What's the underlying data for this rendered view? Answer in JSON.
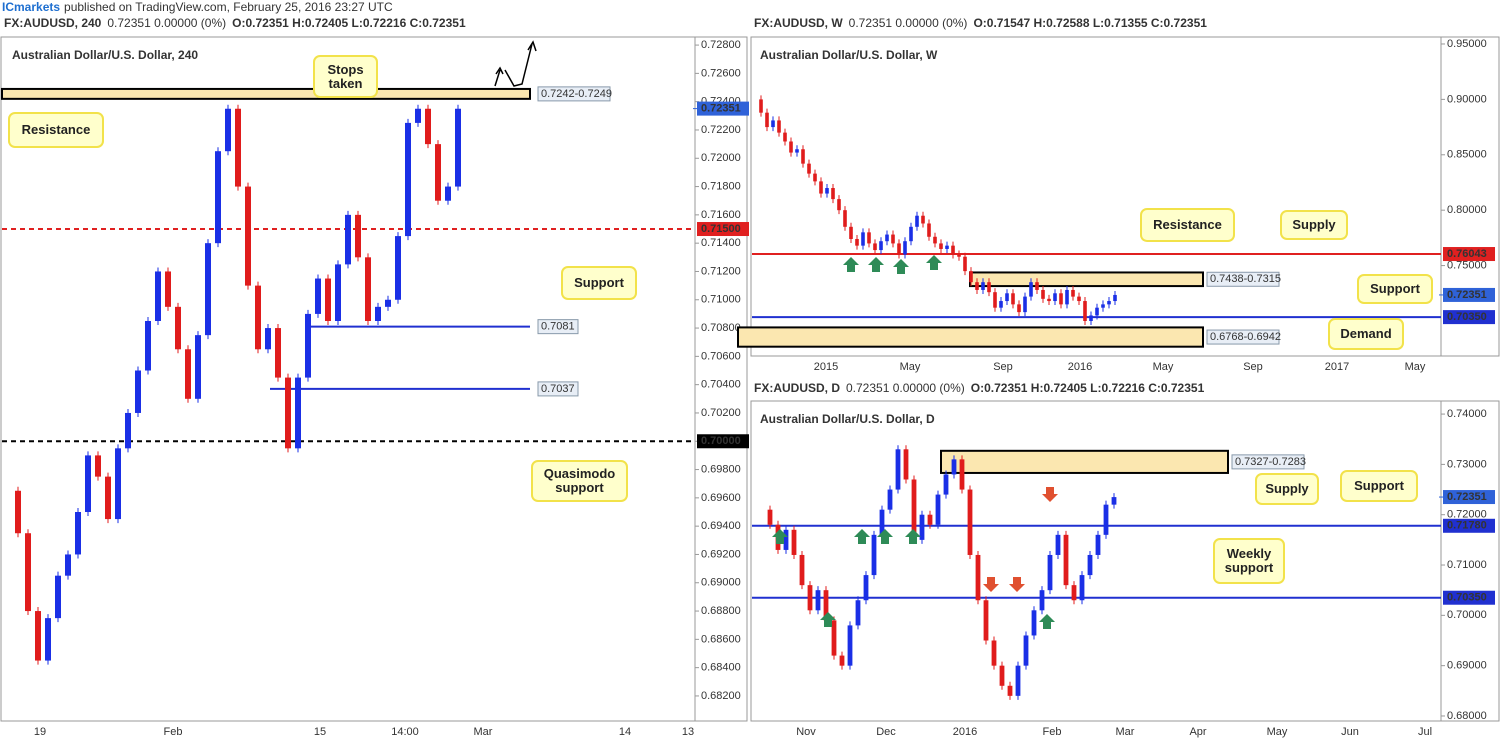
{
  "header": {
    "brand": "ICmarkets",
    "published": "published on TradingView.com, February 25, 2016 23:27 UTC"
  },
  "panels": [
    {
      "symbol": "FX:AUDUSD, 240",
      "quote": "0.72351 0.00000 (0%)",
      "ohlc": "O:0.72351 H:0.72405 L:0.72216 C:0.72351",
      "title": "Australian Dollar/U.S. Dollar, 240",
      "ylim": [
        0.6803,
        0.7285
      ],
      "yticks": [
        {
          "value": 0.728,
          "label": "0.72800"
        },
        {
          "value": 0.726,
          "label": "0.72600"
        },
        {
          "value": 0.724,
          "label": "0.72400"
        },
        {
          "value": 0.722,
          "label": "0.72200"
        },
        {
          "value": 0.72,
          "label": "0.72000"
        },
        {
          "value": 0.718,
          "label": "0.71800"
        },
        {
          "value": 0.716,
          "label": "0.71600"
        },
        {
          "value": 0.714,
          "label": "0.71400"
        },
        {
          "value": 0.712,
          "label": "0.71200"
        },
        {
          "value": 0.71,
          "label": "0.71000"
        },
        {
          "value": 0.708,
          "label": "0.70800"
        },
        {
          "value": 0.706,
          "label": "0.70600"
        },
        {
          "value": 0.704,
          "label": "0.70400"
        },
        {
          "value": 0.702,
          "label": "0.70200"
        },
        {
          "value": 0.7,
          "label": "0.70000"
        },
        {
          "value": 0.698,
          "label": "0.69800"
        },
        {
          "value": 0.696,
          "label": "0.69600"
        },
        {
          "value": 0.694,
          "label": "0.69400"
        },
        {
          "value": 0.692,
          "label": "0.69200"
        },
        {
          "value": 0.69,
          "label": "0.69000"
        },
        {
          "value": 0.688,
          "label": "0.68800"
        },
        {
          "value": 0.686,
          "label": "0.68600"
        },
        {
          "value": 0.684,
          "label": "0.68400"
        },
        {
          "value": 0.682,
          "label": "0.68200"
        }
      ],
      "xlabels": [
        "19",
        "Feb",
        "15",
        "14:00",
        "Mar",
        "14",
        "13"
      ],
      "closes": [
        0.6965,
        0.6935,
        0.688,
        0.6845,
        0.6875,
        0.6905,
        0.692,
        0.695,
        0.699,
        0.6975,
        0.6945,
        0.6995,
        0.702,
        0.705,
        0.7085,
        0.712,
        0.7095,
        0.7065,
        0.703,
        0.7075,
        0.714,
        0.7205,
        0.7235,
        0.718,
        0.711,
        0.7065,
        0.708,
        0.7045,
        0.6995,
        0.7045,
        0.709,
        0.7115,
        0.7085,
        0.7125,
        0.716,
        0.713,
        0.7085,
        0.7095,
        0.71,
        0.7145,
        0.7225,
        0.7235,
        0.721,
        0.717,
        0.718,
        0.7235
      ],
      "price": {
        "value": 0.72351,
        "label": "0.72351",
        "color": "#2f62d8"
      },
      "levels": [
        {
          "value": 0.715,
          "label": "0.71500",
          "color": "#e02020",
          "dashed": true
        },
        {
          "value": 0.7081,
          "color": "#2030d0",
          "dashed": false
        },
        {
          "value": 0.7037,
          "color": "#2030d0",
          "dashed": false
        },
        {
          "value": 0.7,
          "label": "0.70000",
          "color": "#000000",
          "dashed": true
        }
      ],
      "zones": [
        {
          "high": 0.7249,
          "low": 0.7242,
          "label": "0.7242-0.7249"
        }
      ],
      "notes": [
        "Stops taken",
        "Resistance",
        "Support",
        "Quasimodo support"
      ]
    },
    {
      "symbol": "FX:AUDUSD, W",
      "quote": "0.72351 0.00000 (0%)",
      "ohlc": "O:0.71547 H:0.72588 L:0.71355 C:0.72351",
      "title": "Australian Dollar/U.S. Dollar, W",
      "ylim": [
        0.6693,
        0.9554
      ],
      "yticks": [
        {
          "value": 0.95,
          "label": "0.95000"
        },
        {
          "value": 0.9,
          "label": "0.90000"
        },
        {
          "value": 0.85,
          "label": "0.85000"
        },
        {
          "value": 0.8,
          "label": "0.80000"
        },
        {
          "value": 0.75,
          "label": "0.75000"
        }
      ],
      "xlabels": [
        "2015",
        "May",
        "Sep",
        "2016",
        "May",
        "Sep",
        "2017",
        "May"
      ],
      "closes": [
        0.9,
        0.888,
        0.875,
        0.881,
        0.87,
        0.862,
        0.852,
        0.855,
        0.842,
        0.833,
        0.826,
        0.815,
        0.82,
        0.81,
        0.8,
        0.785,
        0.774,
        0.768,
        0.78,
        0.77,
        0.764,
        0.772,
        0.778,
        0.77,
        0.76,
        0.772,
        0.785,
        0.795,
        0.788,
        0.776,
        0.77,
        0.765,
        0.768,
        0.76,
        0.758,
        0.745,
        0.735,
        0.728,
        0.735,
        0.726,
        0.712,
        0.718,
        0.725,
        0.715,
        0.708,
        0.722,
        0.735,
        0.728,
        0.72,
        0.718,
        0.725,
        0.715,
        0.728,
        0.722,
        0.718,
        0.7,
        0.705,
        0.712,
        0.715,
        0.718,
        0.7235
      ],
      "price": {
        "value": 0.72351,
        "label": "0.72351",
        "color": "#2f62d8"
      },
      "levels": [
        {
          "value": 0.76043,
          "label": "0.76043",
          "color": "#e02020",
          "dashed": false
        },
        {
          "value": 0.7035,
          "label": "0.70350",
          "color": "#2030d0",
          "dashed": false
        }
      ],
      "zones": [
        {
          "high": 0.7438,
          "low": 0.7315,
          "label": "0.7438-0.7315"
        },
        {
          "high": 0.6942,
          "low": 0.6768,
          "label": "0.6768-0.6942"
        }
      ],
      "notes": [
        "Resistance",
        "Supply",
        "Support",
        "Demand"
      ]
    },
    {
      "symbol": "FX:AUDUSD, D",
      "quote": "0.72351 0.00000 (0%)",
      "ohlc": "O:0.72351 H:0.72405 L:0.72216 C:0.72351",
      "title": "Australian Dollar/U.S. Dollar, D",
      "ylim": [
        0.6792,
        0.7424
      ],
      "yticks": [
        {
          "value": 0.74,
          "label": "0.74000"
        },
        {
          "value": 0.73,
          "label": "0.73000"
        },
        {
          "value": 0.72,
          "label": "0.72000"
        },
        {
          "value": 0.71,
          "label": "0.71000"
        },
        {
          "value": 0.7,
          "label": "0.70000"
        },
        {
          "value": 0.69,
          "label": "0.69000"
        },
        {
          "value": 0.68,
          "label": "0.68000"
        }
      ],
      "xlabels": [
        "Nov",
        "Dec",
        "2016",
        "Feb",
        "Mar",
        "Apr",
        "May",
        "Jun",
        "Jul"
      ],
      "closes": [
        0.721,
        0.718,
        0.713,
        0.717,
        0.712,
        0.706,
        0.701,
        0.705,
        0.699,
        0.692,
        0.69,
        0.698,
        0.703,
        0.708,
        0.716,
        0.721,
        0.725,
        0.733,
        0.727,
        0.715,
        0.72,
        0.718,
        0.724,
        0.728,
        0.731,
        0.725,
        0.712,
        0.703,
        0.695,
        0.69,
        0.686,
        0.684,
        0.69,
        0.696,
        0.701,
        0.705,
        0.712,
        0.716,
        0.706,
        0.703,
        0.708,
        0.712,
        0.716,
        0.722,
        0.7235
      ],
      "price": {
        "value": 0.72351,
        "label": "0.72351",
        "color": "#2f62d8"
      },
      "levels": [
        {
          "value": 0.7178,
          "label": "0.71780",
          "color": "#2030d0",
          "dashed": false
        },
        {
          "value": 0.7035,
          "label": "0.70350",
          "color": "#2030d0",
          "dashed": false
        }
      ],
      "zones": [
        {
          "high": 0.7327,
          "low": 0.7283,
          "label": "0.7327-0.7283"
        }
      ],
      "notes": [
        "Supply",
        "Support",
        "Weekly support"
      ]
    }
  ]
}
